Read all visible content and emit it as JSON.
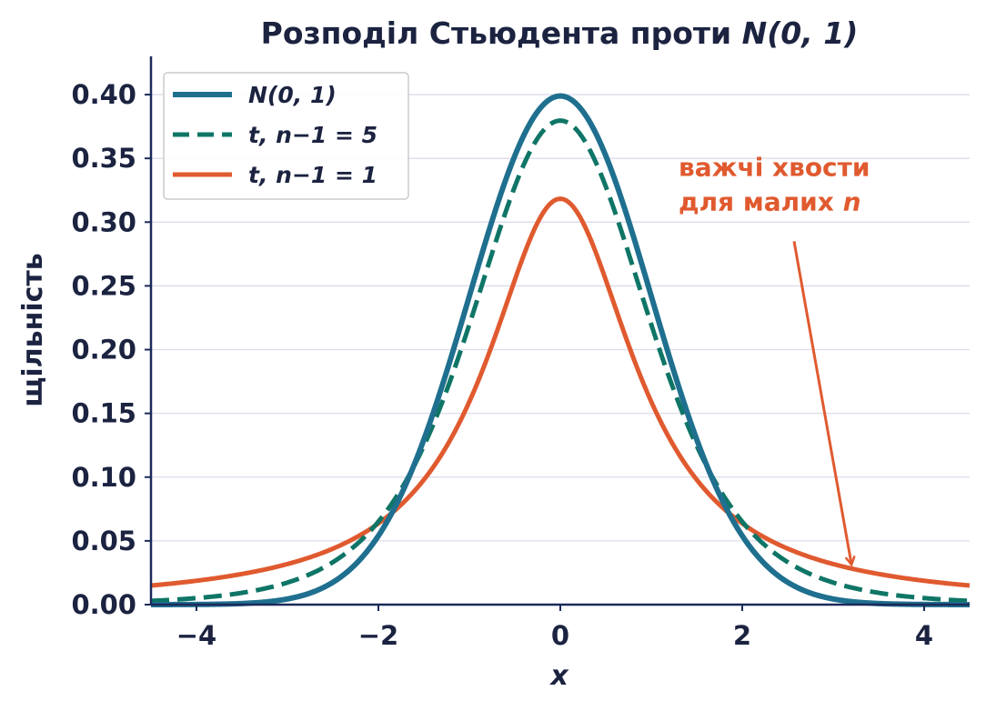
{
  "chart_data": {
    "type": "line",
    "title_prefix": "Розподіл Стьюдента проти ",
    "title_math": "N(0, 1)",
    "xlabel": "x",
    "ylabel": "щільність",
    "xlim": [
      -4.5,
      4.5
    ],
    "ylim": [
      0,
      0.43
    ],
    "x_ticks": [
      -4,
      -2,
      0,
      2,
      4
    ],
    "x_tick_labels": [
      "−4",
      "−2",
      "0",
      "2",
      "4"
    ],
    "y_ticks": [
      0.0,
      0.05,
      0.1,
      0.15,
      0.2,
      0.25,
      0.3,
      0.35,
      0.4
    ],
    "y_tick_labels": [
      "0.00",
      "0.05",
      "0.10",
      "0.15",
      "0.20",
      "0.25",
      "0.30",
      "0.35",
      "0.40"
    ],
    "grid": "horizontal",
    "legend_placement": "top-left",
    "series": [
      {
        "name": "N(0, 1)",
        "distribution": "normal",
        "style": "solid",
        "color": "#1f6f8f",
        "x": [
          -4.5,
          -4,
          -3.5,
          -3,
          -2.5,
          -2,
          -1.5,
          -1,
          -0.5,
          0,
          0.5,
          1,
          1.5,
          2,
          2.5,
          3,
          3.5,
          4,
          4.5
        ],
        "values": [
          0.0,
          0.0001,
          0.0009,
          0.0044,
          0.0175,
          0.054,
          0.1295,
          0.242,
          0.3521,
          0.3989,
          0.3521,
          0.242,
          0.1295,
          0.054,
          0.0175,
          0.0044,
          0.0009,
          0.0001,
          0.0
        ]
      },
      {
        "name": "t, n−1 = 5",
        "distribution": "student_t",
        "df": 5,
        "style": "dashed",
        "color": "#0f7566",
        "x": [
          -4.5,
          -4,
          -3.5,
          -3,
          -2.5,
          -2,
          -1.5,
          -1,
          -0.5,
          0,
          0.5,
          1,
          1.5,
          2,
          2.5,
          3,
          3.5,
          4,
          4.5
        ],
        "values": [
          0.004,
          0.0051,
          0.0087,
          0.0173,
          0.0367,
          0.0651,
          0.1245,
          0.2197,
          0.3279,
          0.3796,
          0.3279,
          0.2197,
          0.1245,
          0.0651,
          0.0367,
          0.0173,
          0.0087,
          0.0051,
          0.004
        ]
      },
      {
        "name": "t, n−1 = 1",
        "distribution": "student_t",
        "df": 1,
        "style": "solid",
        "color": "#e05a2f",
        "x": [
          -4.5,
          -4,
          -3.5,
          -3,
          -2.5,
          -2,
          -1.5,
          -1,
          -0.5,
          0,
          0.5,
          1,
          1.5,
          2,
          2.5,
          3,
          3.5,
          4,
          4.5
        ],
        "values": [
          0.015,
          0.0187,
          0.0241,
          0.0318,
          0.0439,
          0.0637,
          0.0979,
          0.1592,
          0.2546,
          0.3183,
          0.2546,
          0.1592,
          0.0979,
          0.0637,
          0.0439,
          0.0318,
          0.0241,
          0.0187,
          0.015
        ]
      }
    ],
    "annotation": {
      "line1": "важчі хвости",
      "line2_prefix": "для малих ",
      "line2_math": "n",
      "color": "#e05a2f",
      "text_at": [
        1.3,
        0.31
      ],
      "arrow_from": [
        2.57,
        0.285
      ],
      "arrow_to": [
        3.2,
        0.032
      ]
    }
  }
}
